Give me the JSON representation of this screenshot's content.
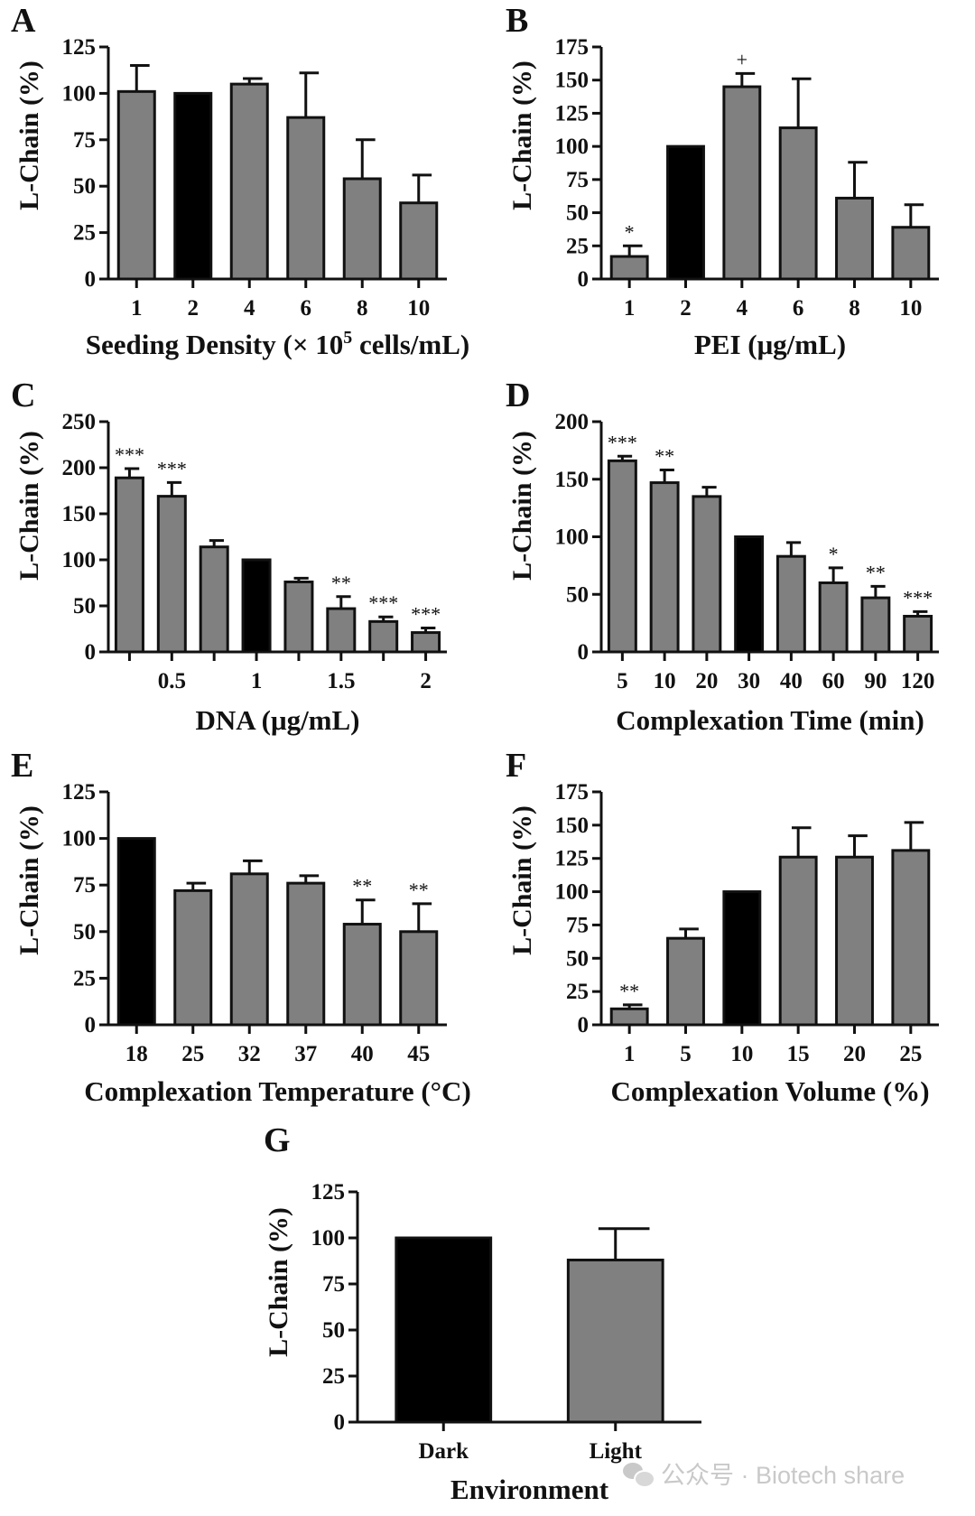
{
  "figure_title": "",
  "watermark": "公众号 · Biotech share",
  "colors": {
    "gray_bar": "#808080",
    "black_bar": "#000000",
    "axis": "#111111"
  },
  "chart_data": [
    {
      "panel": "A",
      "type": "bar",
      "categories": [
        "1",
        "2",
        "4",
        "6",
        "8",
        "10"
      ],
      "values": [
        101,
        100,
        105,
        87,
        54,
        41
      ],
      "errors": [
        14,
        0,
        3,
        24,
        21,
        15
      ],
      "highlight": [
        1
      ],
      "significance": [
        "",
        "",
        "",
        "",
        "",
        ""
      ],
      "xlabel": "Seeding Density (× 10",
      "xlabel_sup": "5",
      "xlabel_suffix": " cells/mL)",
      "ylabel": "L-Chain (%)",
      "ylim": [
        0,
        125
      ],
      "yticks": [
        "0",
        "25",
        "50",
        "75",
        "100",
        "125"
      ],
      "tick_values": [
        0,
        25,
        50,
        75,
        100,
        125
      ]
    },
    {
      "panel": "B",
      "type": "bar",
      "categories": [
        "1",
        "2",
        "4",
        "6",
        "8",
        "10"
      ],
      "values": [
        17,
        100,
        145,
        114,
        61,
        39
      ],
      "errors": [
        8,
        0,
        10,
        37,
        27,
        17
      ],
      "highlight": [
        1
      ],
      "significance": [
        "*",
        "",
        "+",
        "",
        "",
        ""
      ],
      "xlabel": "PEI (μg/mL)",
      "ylabel": "L-Chain (%)",
      "ylim": [
        0,
        175
      ],
      "yticks": [
        "0",
        "25",
        "50",
        "75",
        "100",
        "125",
        "150",
        "175"
      ],
      "tick_values": [
        0,
        25,
        50,
        75,
        100,
        125,
        150,
        175
      ]
    },
    {
      "panel": "C",
      "type": "bar",
      "categories": [
        "0.25",
        "0.5",
        "0.75",
        "1",
        "1.25",
        "1.5",
        "1.75",
        "2"
      ],
      "values": [
        189,
        169,
        114,
        100,
        76,
        47,
        33,
        21
      ],
      "errors": [
        10,
        15,
        7,
        0,
        4,
        13,
        5,
        5
      ],
      "highlight": [
        3
      ],
      "significance": [
        "***",
        "***",
        "",
        "",
        "",
        "**",
        "***",
        "***"
      ],
      "xticks": [
        "0.5",
        "1",
        "1.5",
        "2"
      ],
      "xtick_positions": [
        0.5,
        1,
        1.5,
        2
      ],
      "xlabel": "DNA (μg/mL)",
      "ylabel": "L-Chain (%)",
      "ylim": [
        0,
        250
      ],
      "yticks": [
        "0",
        "50",
        "100",
        "150",
        "200",
        "250"
      ],
      "tick_values": [
        0,
        50,
        100,
        150,
        200,
        250
      ]
    },
    {
      "panel": "D",
      "type": "bar",
      "categories": [
        "5",
        "10",
        "20",
        "30",
        "40",
        "60",
        "90",
        "120"
      ],
      "values": [
        166,
        147,
        135,
        100,
        83,
        60,
        47,
        31
      ],
      "errors": [
        4,
        11,
        8,
        0,
        12,
        13,
        10,
        4
      ],
      "highlight": [
        3
      ],
      "significance": [
        "***",
        "**",
        "",
        "",
        "",
        "*",
        "**",
        "***"
      ],
      "xlabel": "Complexation Time (min)",
      "ylabel": "L-Chain (%)",
      "ylim": [
        0,
        200
      ],
      "yticks": [
        "0",
        "50",
        "100",
        "150",
        "200"
      ],
      "tick_values": [
        0,
        50,
        100,
        150,
        200
      ]
    },
    {
      "panel": "E",
      "type": "bar",
      "categories": [
        "18",
        "25",
        "32",
        "37",
        "40",
        "45"
      ],
      "values": [
        100,
        72,
        81,
        76,
        54,
        50
      ],
      "errors": [
        0,
        4,
        7,
        4,
        13,
        15
      ],
      "highlight": [
        0
      ],
      "significance": [
        "",
        "",
        "",
        "",
        "**",
        "**"
      ],
      "xlabel": "Complexation Temperature (°C)",
      "ylabel": "L-Chain (%)",
      "ylim": [
        0,
        125
      ],
      "yticks": [
        "0",
        "25",
        "50",
        "75",
        "100",
        "125"
      ],
      "tick_values": [
        0,
        25,
        50,
        75,
        100,
        125
      ]
    },
    {
      "panel": "F",
      "type": "bar",
      "categories": [
        "1",
        "5",
        "10",
        "15",
        "20",
        "25"
      ],
      "values": [
        12,
        65,
        100,
        126,
        126,
        131
      ],
      "errors": [
        3,
        7,
        0,
        22,
        16,
        21
      ],
      "highlight": [
        2
      ],
      "significance": [
        "**",
        "",
        "",
        "",
        "",
        ""
      ],
      "xlabel": "Complexation Volume (%)",
      "ylabel": "L-Chain (%)",
      "ylim": [
        0,
        175
      ],
      "yticks": [
        "0",
        "25",
        "50",
        "75",
        "100",
        "125",
        "150",
        "175"
      ],
      "tick_values": [
        0,
        25,
        50,
        75,
        100,
        125,
        150,
        175
      ]
    },
    {
      "panel": "G",
      "type": "bar",
      "categories": [
        "Dark",
        "Light"
      ],
      "values": [
        100,
        88
      ],
      "errors": [
        0,
        17
      ],
      "highlight": [
        0
      ],
      "significance": [
        "",
        ""
      ],
      "xlabel": "Environment",
      "ylabel": "L-Chain (%)",
      "ylim": [
        0,
        125
      ],
      "yticks": [
        "0",
        "25",
        "50",
        "75",
        "100",
        "125"
      ],
      "tick_values": [
        0,
        25,
        50,
        75,
        100,
        125
      ]
    }
  ]
}
